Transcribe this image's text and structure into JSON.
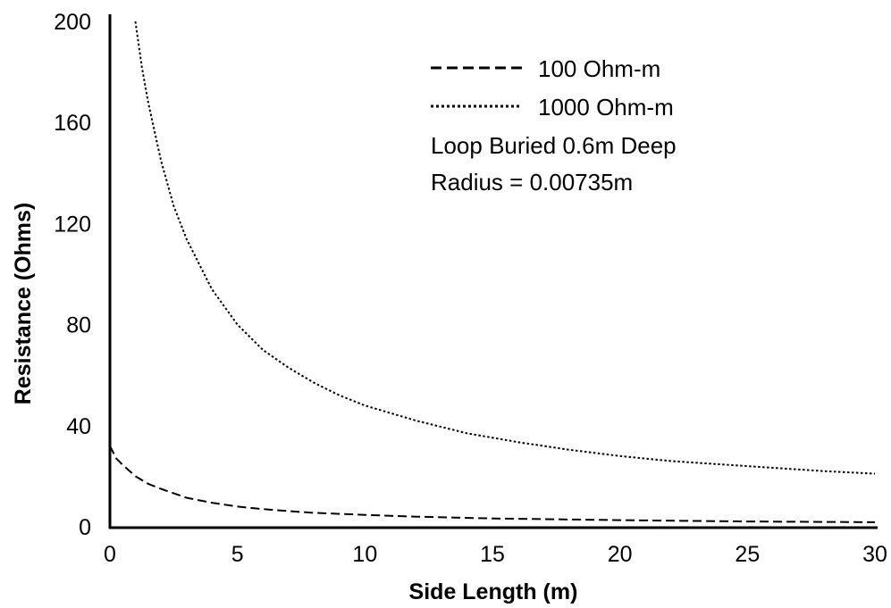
{
  "chart_data": {
    "type": "line",
    "xlabel": "Side Length (m)",
    "ylabel": "Resistance (Ohms)",
    "xlim": [
      0,
      30
    ],
    "ylim": [
      0,
      200
    ],
    "x_ticks": [
      "0",
      "5",
      "10",
      "15",
      "20",
      "25",
      "30"
    ],
    "y_ticks": [
      "0",
      "40",
      "80",
      "120",
      "160",
      "200"
    ],
    "grid": false,
    "legend_position": "top-right",
    "series": [
      {
        "name": "100 Ohm-m",
        "line_style": "dashed",
        "x": [
          0,
          0.25,
          0.5,
          1,
          1.5,
          2,
          3,
          4,
          5,
          6,
          7,
          8,
          10,
          12,
          15,
          20,
          25,
          30
        ],
        "y": [
          32,
          27,
          24.5,
          20,
          17,
          15,
          11.5,
          9.5,
          8,
          7,
          6.2,
          5.5,
          4.7,
          4,
          3.3,
          2.6,
          2.1,
          1.8
        ]
      },
      {
        "name": "1000 Ohm-m",
        "line_style": "dotted",
        "x": [
          1,
          1.25,
          1.5,
          2,
          2.5,
          3,
          4,
          5,
          6,
          7,
          8,
          9,
          10,
          12,
          14,
          16,
          18,
          20,
          22,
          25,
          28,
          30
        ],
        "y": [
          200,
          182,
          168,
          145,
          127,
          114,
          94,
          80,
          70,
          63,
          57,
          52,
          48,
          42,
          37,
          33.5,
          30.5,
          28,
          26,
          24,
          22,
          21
        ]
      }
    ],
    "annotations": [
      "Loop Buried 0.6m Deep",
      "Radius = 0.00735m"
    ]
  }
}
